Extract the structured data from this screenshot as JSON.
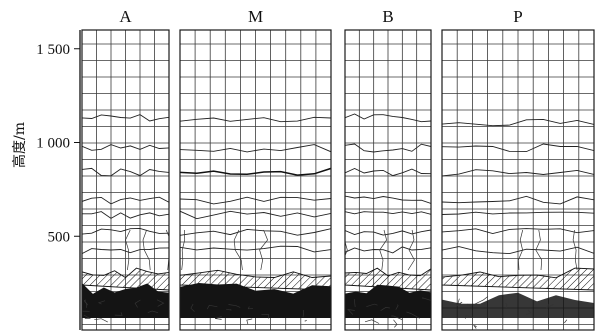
{
  "y_axis": {
    "label": "高度/m",
    "ticks": [
      {
        "value": 500,
        "label": "500"
      },
      {
        "value": 1000,
        "label": "1 000"
      },
      {
        "value": 1500,
        "label": "1 500"
      }
    ],
    "range": [
      0,
      1600
    ]
  },
  "panels": [
    {
      "id": "A",
      "label": "A"
    },
    {
      "id": "M",
      "label": "M"
    },
    {
      "id": "B",
      "label": "B"
    },
    {
      "id": "P",
      "label": "P"
    }
  ],
  "colors": {
    "ink": "#111111",
    "background": "#ffffff"
  }
}
